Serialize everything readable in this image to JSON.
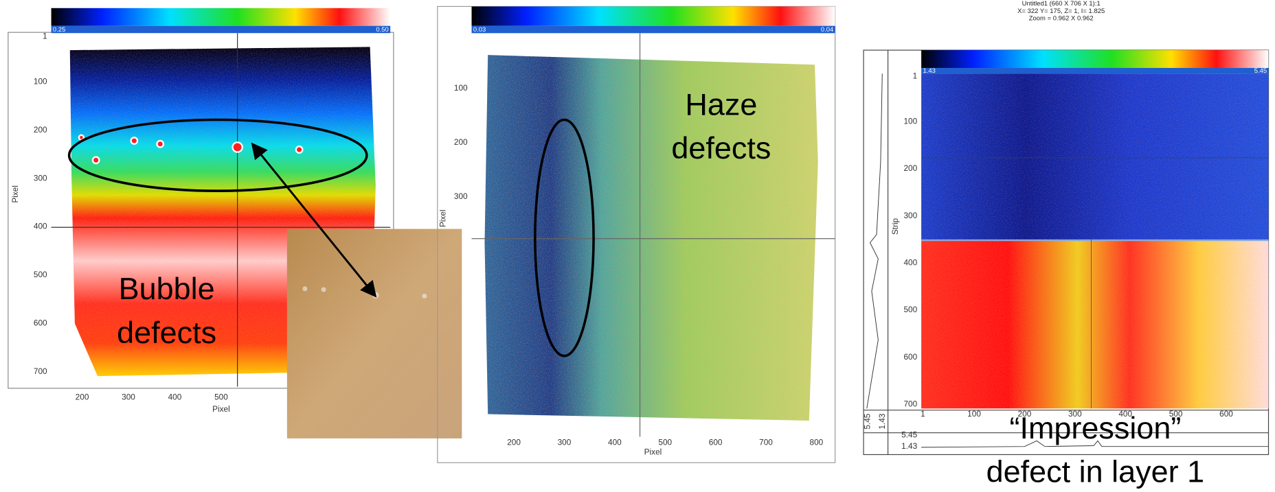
{
  "panels": [
    {
      "colorbar": {
        "min": "0.25",
        "max": "0.50"
      },
      "y_ticks": [
        "1",
        "100",
        "200",
        "300",
        "400",
        "500",
        "600",
        "700"
      ],
      "x_ticks": [
        "200",
        "300",
        "400",
        "500"
      ],
      "x_label": "Pixel",
      "y_label": "Pixel",
      "annotation": [
        "Bubble",
        "defects"
      ]
    },
    {
      "colorbar": {
        "min": "0.03",
        "max": "0.04"
      },
      "y_ticks": [
        "100",
        "200",
        "300"
      ],
      "x_ticks": [
        "200",
        "300",
        "400",
        "500",
        "600",
        "700",
        "800"
      ],
      "x_label": "Pixel",
      "y_label": "Pixel",
      "annotation": [
        "Haze",
        "defects"
      ]
    },
    {
      "header": [
        "Untitled1 (660 X 706 X 1):1",
        "X= 322  Y= 175,  Z= 1,  I= 1.825",
        "Zoom = 0.962 X 0.962"
      ],
      "colorbar": {
        "min": "1.43",
        "max": "5.45"
      },
      "y_ticks": [
        "1",
        "100",
        "200",
        "300",
        "400",
        "500",
        "600",
        "700"
      ],
      "x_ticks": [
        "1",
        "100",
        "200",
        "300",
        "400",
        "500",
        "600"
      ],
      "y_label": "Strip",
      "profile_labels": {
        "side_max": "5.45",
        "side_min": "1.43",
        "bottom_max": "5.45",
        "bottom_min": "1.43"
      },
      "annotation": [
        "“Impression”",
        "defect in layer 1"
      ]
    }
  ]
}
